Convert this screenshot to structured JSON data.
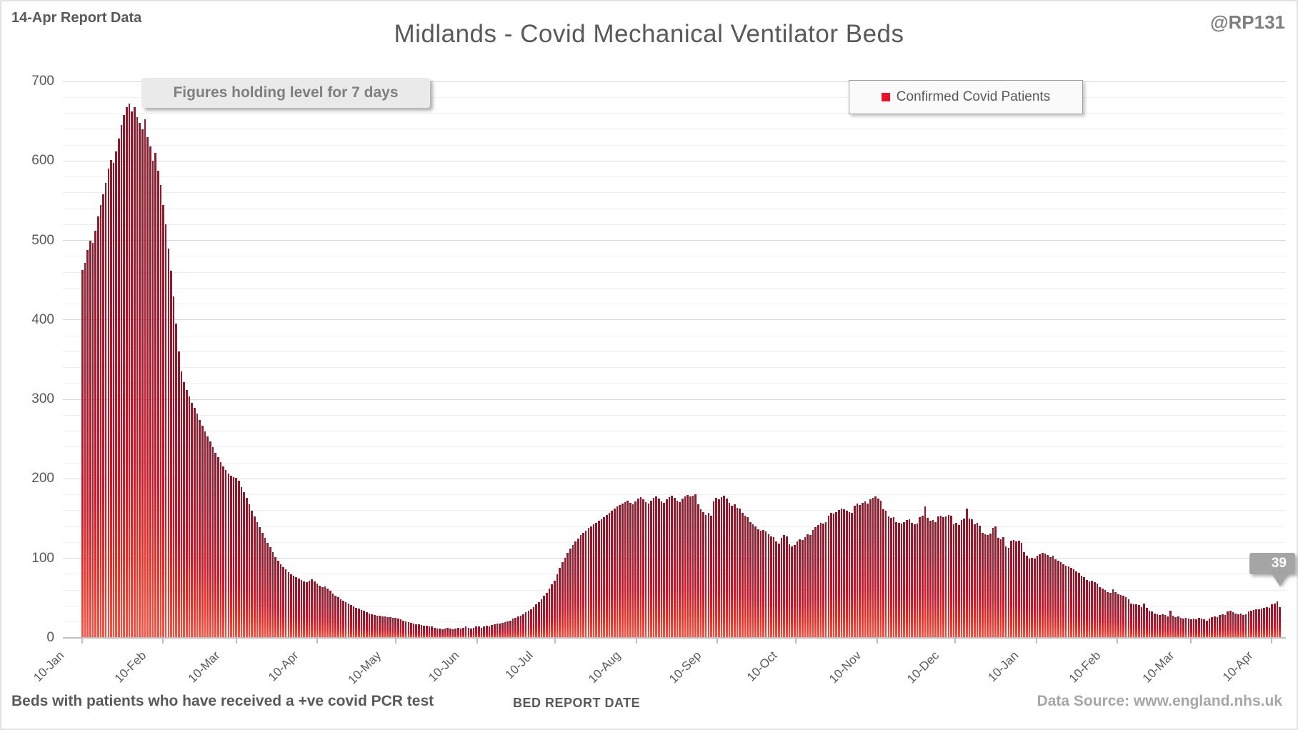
{
  "header": {
    "report_label": "14-Apr Report Data",
    "title": "Midlands - Covid Mechanical Ventilator Beds",
    "handle": "@RP131"
  },
  "annotation": {
    "text": "Figures holding level for 7 days"
  },
  "legend": {
    "label": "Confirmed Covid Patients",
    "marker_color": "#e8112d"
  },
  "callout": {
    "value": "39"
  },
  "footer": {
    "note": "Beds with patients who have received a +ve covid PCR test",
    "xlabel": "BED REPORT DATE",
    "source": "Data Source: www.england.nhs.uk"
  },
  "colors": {
    "bar_top": "#8e1a2b",
    "bar_bottom": "#ff5040",
    "grid_minor": "#efefef",
    "grid_major": "#d9d9d9",
    "axis": "#bfbfbf",
    "text_dark": "#595959",
    "text_light": "#a6a6a6"
  },
  "chart_data": {
    "type": "bar",
    "title": "Midlands - Covid Mechanical Ventilator Beds",
    "series_name": "Confirmed Covid Patients",
    "xlabel": "BED REPORT DATE",
    "ylabel": "",
    "ylim": [
      0,
      700
    ],
    "y_ticks": [
      0,
      100,
      200,
      300,
      400,
      500,
      600,
      700
    ],
    "minor_grid_step": 20,
    "grid": true,
    "legend_position": "top-right",
    "start_date": "10-Jan-2021",
    "end_date": "14-Apr-2022",
    "x_tick_labels": [
      "10-Jan",
      "10-Feb",
      "10-Mar",
      "10-Apr",
      "10-May",
      "10-Jun",
      "10-Jul",
      "10-Aug",
      "10-Sep",
      "10-Oct",
      "10-Nov",
      "10-Dec",
      "10-Jan",
      "10-Feb",
      "10-Mar",
      "10-Apr"
    ],
    "x_tick_day_offsets": [
      0,
      31,
      59,
      90,
      120,
      151,
      181,
      212,
      243,
      273,
      304,
      334,
      365,
      396,
      424,
      455
    ],
    "last_point_label": 39,
    "values": [
      463,
      472,
      488,
      500,
      497,
      512,
      530,
      545,
      558,
      572,
      590,
      601,
      598,
      612,
      628,
      645,
      658,
      668,
      672,
      662,
      668,
      655,
      648,
      640,
      652,
      630,
      618,
      600,
      610,
      588,
      570,
      545,
      520,
      490,
      462,
      430,
      395,
      360,
      335,
      322,
      312,
      304,
      296,
      289,
      282,
      274,
      267,
      260,
      253,
      247,
      240,
      233,
      227,
      221,
      216,
      211,
      207,
      204,
      202,
      201,
      198,
      190,
      183,
      176,
      168,
      160,
      153,
      146,
      139,
      132,
      126,
      120,
      114,
      108,
      102,
      97,
      93,
      89,
      86,
      83,
      80,
      78,
      76,
      75,
      73,
      71,
      70,
      72,
      74,
      71,
      68,
      66,
      64,
      65,
      62,
      59,
      56,
      53,
      51,
      49,
      47,
      45,
      43,
      41,
      40,
      38,
      37,
      35,
      34,
      32,
      31,
      30,
      29,
      28,
      28,
      27,
      27,
      26,
      26,
      25,
      25,
      24,
      23,
      22,
      21,
      20,
      19,
      18,
      17,
      17,
      16,
      15,
      15,
      14,
      14,
      13,
      12,
      12,
      11,
      12,
      13,
      12,
      11,
      12,
      13,
      12,
      13,
      14,
      13,
      12,
      13,
      14,
      14,
      13,
      14,
      15,
      14,
      16,
      17,
      18,
      18,
      19,
      20,
      21,
      22,
      24,
      25,
      27,
      28,
      30,
      32,
      34,
      36,
      39,
      42,
      45,
      49,
      53,
      57,
      62,
      67,
      72,
      80,
      88,
      95,
      101,
      107,
      112,
      117,
      121,
      125,
      129,
      132,
      135,
      138,
      140,
      143,
      145,
      147,
      149,
      152,
      155,
      157,
      160,
      163,
      165,
      167,
      169,
      171,
      173,
      170,
      168,
      172,
      175,
      177,
      174,
      171,
      169,
      173,
      176,
      178,
      175,
      172,
      170,
      174,
      177,
      179,
      176,
      173,
      171,
      175,
      178,
      180,
      178,
      179,
      181,
      168,
      162,
      158,
      155,
      157,
      154,
      172,
      176,
      174,
      177,
      179,
      175,
      170,
      166,
      168,
      164,
      163,
      157,
      154,
      152,
      146,
      143,
      140,
      137,
      135,
      136,
      134,
      130,
      128,
      127,
      121,
      119,
      126,
      129,
      128,
      118,
      115,
      117,
      121,
      124,
      123,
      127,
      130,
      129,
      136,
      139,
      142,
      145,
      144,
      146,
      154,
      157,
      156,
      158,
      161,
      163,
      162,
      160,
      158,
      157,
      166,
      169,
      167,
      170,
      172,
      169,
      174,
      176,
      178,
      175,
      173,
      162,
      160,
      153,
      151,
      152,
      146,
      145,
      144,
      146,
      148,
      149,
      145,
      143,
      144,
      152,
      154,
      165,
      151,
      147,
      148,
      146,
      153,
      154,
      152,
      153,
      155,
      154,
      143,
      145,
      142,
      148,
      150,
      163,
      150,
      149,
      143,
      145,
      141,
      132,
      130,
      129,
      131,
      138,
      140,
      126,
      124,
      127,
      115,
      113,
      122,
      123,
      121,
      122,
      120,
      108,
      103,
      100,
      101,
      100,
      103,
      105,
      107,
      106,
      104,
      102,
      103,
      99,
      97,
      95,
      93,
      91,
      90,
      88,
      86,
      84,
      82,
      78,
      76,
      73,
      71,
      72,
      70,
      68,
      64,
      62,
      60,
      58,
      57,
      61,
      58,
      55,
      54,
      53,
      51,
      49,
      43,
      42,
      42,
      41,
      39,
      43,
      38,
      34,
      33,
      31,
      30,
      29,
      30,
      29,
      27,
      34,
      28,
      26,
      27,
      25,
      24,
      25,
      24,
      23,
      24,
      23,
      25,
      24,
      23,
      22,
      24,
      26,
      27,
      26,
      29,
      30,
      29,
      33,
      34,
      32,
      31,
      30,
      31,
      29,
      30,
      33,
      34,
      35,
      36,
      36,
      37,
      38,
      39,
      38,
      42,
      43,
      46,
      39
    ]
  }
}
